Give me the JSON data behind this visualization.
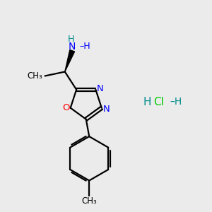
{
  "background_color": "#ebebeb",
  "bond_color": "#000000",
  "oxygen_color": "#ff0000",
  "nitrogen_color": "#0000ff",
  "nh_color": "#008b8b",
  "hcl_cl_color": "#00cc00",
  "hcl_h_color": "#008b8b",
  "figsize": [
    3.0,
    3.0
  ],
  "dpi": 100,
  "xlim": [
    0,
    10
  ],
  "ylim": [
    0,
    10
  ]
}
